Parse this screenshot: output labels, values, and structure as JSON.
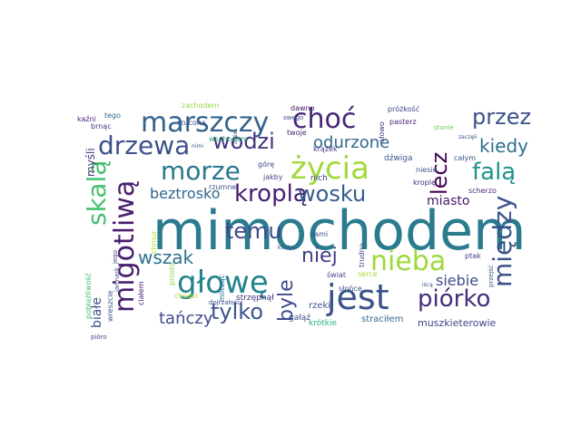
{
  "title": "",
  "words": [
    {
      "text": "mimochodem",
      "color": "#2a7b8e"
    },
    {
      "text": "jest",
      "color": "#3b528b"
    },
    {
      "text": "życia",
      "color": "#a0da39"
    },
    {
      "text": "głowę",
      "color": "#26828e"
    },
    {
      "text": "marszczy",
      "color": "#33638d"
    },
    {
      "text": "drzewa",
      "color": "#3b528b"
    },
    {
      "text": "morze",
      "color": "#2a788e"
    },
    {
      "text": "choć",
      "color": "#482777"
    },
    {
      "text": "migotliwą",
      "color": "#481d6f"
    },
    {
      "text": "nieba",
      "color": "#9bd93c"
    },
    {
      "text": "skalą",
      "color": "#46c06f"
    },
    {
      "text": "falą",
      "color": "#20928c"
    },
    {
      "text": "lecz",
      "color": "#440154"
    },
    {
      "text": "między",
      "color": "#3b528b"
    },
    {
      "text": "piórko",
      "color": "#472d7b"
    },
    {
      "text": "kroplą",
      "color": "#482071"
    },
    {
      "text": "wosku",
      "color": "#365c8d"
    },
    {
      "text": "przez",
      "color": "#3b528b"
    },
    {
      "text": "temu",
      "color": "#3e4a89"
    },
    {
      "text": "wodzi",
      "color": "#46327e"
    },
    {
      "text": "niej",
      "color": "#433e85"
    },
    {
      "text": "tylko",
      "color": "#39568c"
    },
    {
      "text": "wszak",
      "color": "#2c718e"
    },
    {
      "text": "byle",
      "color": "#3e4989"
    },
    {
      "text": "kiedy",
      "color": "#2d708e"
    },
    {
      "text": "tańczy",
      "color": "#3e4a89"
    },
    {
      "text": "odurzone",
      "color": "#31688e"
    },
    {
      "text": "beztrosko",
      "color": "#31678e"
    },
    {
      "text": "siebie",
      "color": "#3d4d8a"
    },
    {
      "text": "miasto",
      "color": "#48186a"
    },
    {
      "text": "białe",
      "color": "#3b528b"
    },
    {
      "text": "myśli",
      "color": "#46327e"
    },
    {
      "text": "muszkieterowie",
      "color": "#3f4788"
    },
    {
      "text": "straciłem",
      "color": "#31688e"
    },
    {
      "text": "rzeki",
      "color": "#3b528b"
    },
    {
      "text": "krótkie",
      "color": "#2ab07f"
    },
    {
      "text": "gałąź",
      "color": "#3e4c8a"
    },
    {
      "text": "strzępnął",
      "color": "#46327e"
    },
    {
      "text": "ciałem",
      "color": "#482173"
    },
    {
      "text": "słońce",
      "color": "#3b528b"
    },
    {
      "text": "świat",
      "color": "#404688"
    },
    {
      "text": "serce",
      "color": "#a5db36"
    },
    {
      "text": "ptak",
      "color": "#453581"
    },
    {
      "text": "trudno",
      "color": "#3f4788"
    },
    {
      "text": "scherzo",
      "color": "#482878"
    },
    {
      "text": "kroplę",
      "color": "#472c7a"
    },
    {
      "text": "niesie",
      "color": "#3b528b"
    },
    {
      "text": "nich",
      "color": "#404588"
    },
    {
      "text": "dźwiga",
      "color": "#39568c"
    },
    {
      "text": "słowo",
      "color": "#46307e"
    },
    {
      "text": "krążek",
      "color": "#433d84"
    },
    {
      "text": "twoje",
      "color": "#482374"
    },
    {
      "text": "górę",
      "color": "#3e4989"
    },
    {
      "text": "jakby",
      "color": "#3f4788"
    },
    {
      "text": "wschodem",
      "color": "#2ab07f"
    },
    {
      "text": "zachodem",
      "color": "#95d840"
    },
    {
      "text": "rzucona",
      "color": "#3b528b"
    },
    {
      "text": "dawno",
      "color": "#471365"
    },
    {
      "text": "swego",
      "color": "#3e4a89"
    },
    {
      "text": "tego",
      "color": "#31688e"
    },
    {
      "text": "kaźni",
      "color": "#482878"
    },
    {
      "text": "brnąc",
      "color": "#46337f"
    },
    {
      "text": "próżkość",
      "color": "#3f4788"
    },
    {
      "text": "pasterz",
      "color": "#482677"
    },
    {
      "text": "całym",
      "color": "#3b528b"
    },
    {
      "text": "stanie",
      "color": "#6ccd5a"
    },
    {
      "text": "pobłażliwość",
      "color": "#3fbc73"
    },
    {
      "text": "wreszcie",
      "color": "#3b528b"
    },
    {
      "text": "pióro",
      "color": "#404588"
    },
    {
      "text": "jarmark",
      "color": "#3b528b"
    },
    {
      "text": "jego",
      "color": "#453781"
    },
    {
      "text": "chodzi",
      "color": "#b5de2b"
    },
    {
      "text": "dojrzałości",
      "color": "#3e4a89"
    },
    {
      "text": "prosto",
      "color": "#89d548"
    },
    {
      "text": "milcząc",
      "color": "#2e6e8e"
    },
    {
      "text": "rzumne",
      "color": "#3b528b"
    },
    {
      "text": "sami",
      "color": "#3b528b"
    },
    {
      "text": "przejść",
      "color": "#3b528b"
    },
    {
      "text": "zaczęli",
      "color": "#3b528b"
    },
    {
      "text": "chmur",
      "color": "#b8de29"
    },
    {
      "text": "znów",
      "color": "#3b528b"
    },
    {
      "text": "nimi",
      "color": "#3b528b"
    },
    {
      "text": "kiedyś",
      "color": "#3b528b"
    },
    {
      "text": "iścą",
      "color": "#3b528b"
    }
  ]
}
